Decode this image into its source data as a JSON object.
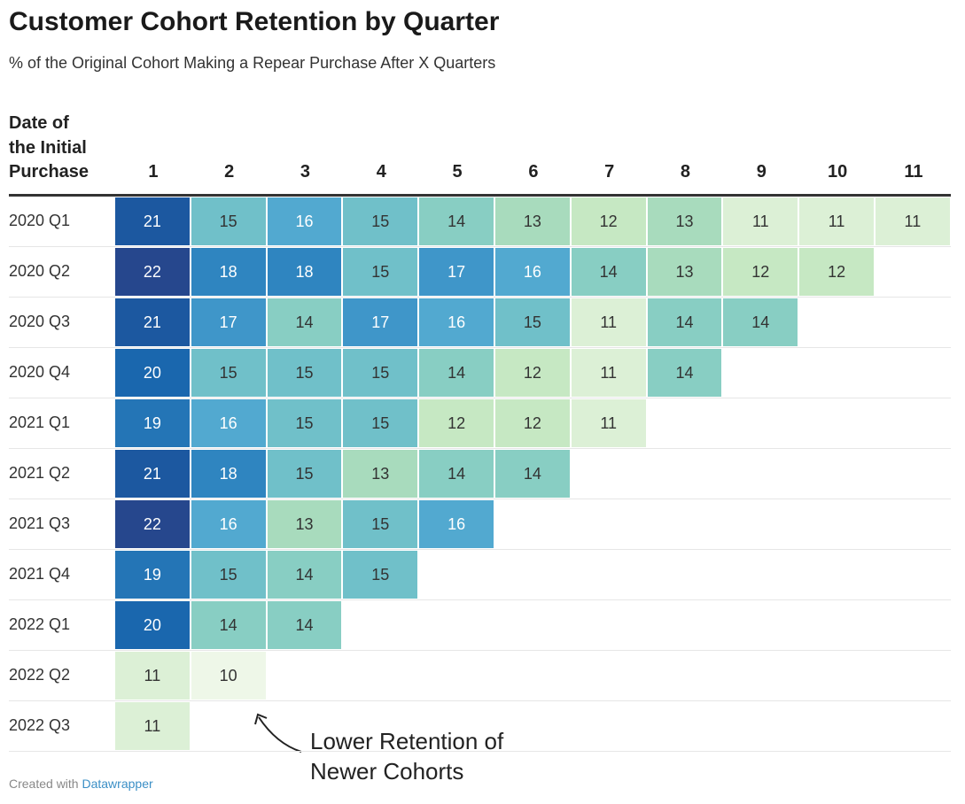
{
  "header": {
    "title": "Customer Cohort Retention by Quarter",
    "subtitle": "% of the Original Cohort Making a Repear Purchase After X Quarters"
  },
  "table": {
    "row_header_lines": [
      "Date of",
      "the Initial",
      "Purchase"
    ],
    "columns": [
      "1",
      "2",
      "3",
      "4",
      "5",
      "6",
      "7",
      "8",
      "9",
      "10",
      "11"
    ],
    "rows": [
      {
        "label": "2020 Q1",
        "values": [
          21,
          15,
          16,
          15,
          14,
          13,
          12,
          13,
          11,
          11,
          11
        ]
      },
      {
        "label": "2020 Q2",
        "values": [
          22,
          18,
          18,
          15,
          17,
          16,
          14,
          13,
          12,
          12
        ]
      },
      {
        "label": "2020 Q3",
        "values": [
          21,
          17,
          14,
          17,
          16,
          15,
          11,
          14,
          14
        ]
      },
      {
        "label": "2020 Q4",
        "values": [
          20,
          15,
          15,
          15,
          14,
          12,
          11,
          14
        ]
      },
      {
        "label": "2021 Q1",
        "values": [
          19,
          16,
          15,
          15,
          12,
          12,
          11
        ]
      },
      {
        "label": "2021 Q2",
        "values": [
          21,
          18,
          15,
          13,
          14,
          14
        ]
      },
      {
        "label": "2021 Q3",
        "values": [
          22,
          16,
          13,
          15,
          16
        ]
      },
      {
        "label": "2021 Q4",
        "values": [
          19,
          15,
          14,
          15
        ]
      },
      {
        "label": "2022 Q1",
        "values": [
          20,
          14,
          14
        ]
      },
      {
        "label": "2022 Q2",
        "values": [
          11,
          10
        ]
      },
      {
        "label": "2022 Q3",
        "values": [
          11
        ]
      }
    ],
    "colors": [
      "#eef7e8",
      "#dcf0d6",
      "#c6e8c3",
      "#a8dbbd",
      "#88cec3",
      "#70c0c9",
      "#52a9d0",
      "#3f96c9",
      "#2f85c0",
      "#2475b6",
      "#1a67ae",
      "#1c58a0",
      "#26478d"
    ]
  },
  "annotation": {
    "lines": [
      "Lower Retention of",
      "Newer Cohorts"
    ]
  },
  "footer": {
    "prefix": "Created with",
    "link": "Datawrapper"
  }
}
